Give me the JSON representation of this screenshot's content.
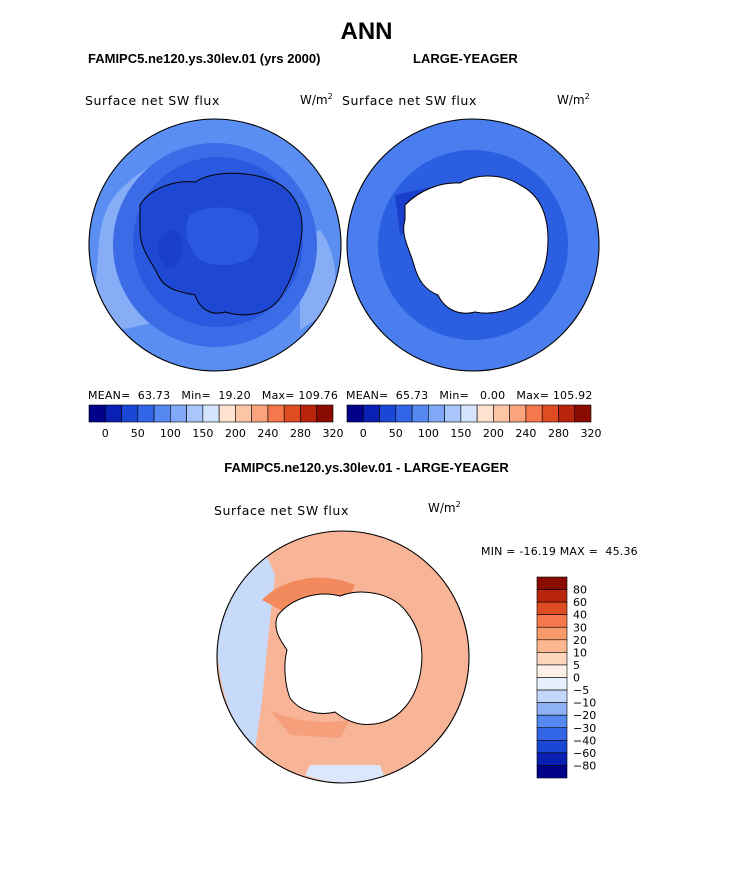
{
  "header": {
    "title": "ANN",
    "model_a": "FAMIPC5.ne120.ys.30lev.01 (yrs 2000)",
    "model_b": "LARGE-YEAGER",
    "diff_title": "FAMIPC5.ne120.ys.30lev.01 - LARGE-YEAGER"
  },
  "panels": {
    "a": {
      "variable": "Surface net SW flux",
      "units_base": "W/m",
      "units_exp": "2",
      "stats": "MEAN=  63.73   Min=  19.20   Max= 109.76"
    },
    "b": {
      "variable": "Surface net SW flux",
      "units_base": "W/m",
      "units_exp": "2",
      "stats": "MEAN=  65.73   Min=   0.00   Max= 105.92"
    },
    "diff": {
      "variable": "Surface net SW flux",
      "units_base": "W/m",
      "units_exp": "2",
      "stats": "MIN = -16.19 MAX =  45.36"
    }
  },
  "chart_data": [
    {
      "type": "heatmap",
      "projection": "south polar stereographic",
      "title": "Surface net SW flux",
      "subtitle": "FAMIPC5.ne120.ys.30lev.01 (yrs 2000)",
      "units": "W/m2",
      "mean": 63.73,
      "min": 19.2,
      "max": 109.76,
      "colorbar": {
        "orientation": "horizontal",
        "levels": [
          0,
          25,
          50,
          75,
          100,
          125,
          150,
          175,
          200,
          220,
          240,
          260,
          280,
          300,
          320
        ],
        "tick_labels": [
          "0",
          "50",
          "100",
          "150",
          "200",
          "240",
          "280",
          "320"
        ],
        "colors": [
          "#00008a",
          "#0a1fb4",
          "#1a47d6",
          "#3366e6",
          "#5588f0",
          "#80a8f6",
          "#a9c6fa",
          "#d4e4fd",
          "#fde2cf",
          "#fbc5a6",
          "#f9a47c",
          "#f4784b",
          "#e04c22",
          "#b8240c",
          "#8a0b00"
        ]
      }
    },
    {
      "type": "heatmap",
      "projection": "south polar stereographic",
      "title": "Surface net SW flux",
      "subtitle": "LARGE-YEAGER",
      "units": "W/m2",
      "mean": 65.73,
      "min": 0.0,
      "max": 105.92,
      "colorbar": {
        "orientation": "horizontal",
        "levels": [
          0,
          25,
          50,
          75,
          100,
          125,
          150,
          175,
          200,
          220,
          240,
          260,
          280,
          300,
          320
        ],
        "tick_labels": [
          "0",
          "50",
          "100",
          "150",
          "200",
          "240",
          "280",
          "320"
        ],
        "colors": [
          "#00008a",
          "#0a1fb4",
          "#1a47d6",
          "#3366e6",
          "#5588f0",
          "#80a8f6",
          "#a9c6fa",
          "#d4e4fd",
          "#fde2cf",
          "#fbc5a6",
          "#f9a47c",
          "#f4784b",
          "#e04c22",
          "#b8240c",
          "#8a0b00"
        ]
      }
    },
    {
      "type": "heatmap",
      "projection": "south polar stereographic",
      "title": "Surface net SW flux",
      "subtitle": "FAMIPC5.ne120.ys.30lev.01 - LARGE-YEAGER",
      "units": "W/m2",
      "min": -16.19,
      "max": 45.36,
      "colorbar": {
        "orientation": "vertical",
        "tick_labels": [
          "80",
          "60",
          "40",
          "30",
          "20",
          "10",
          "5",
          "0",
          "-5",
          "-10",
          "-20",
          "-30",
          "-40",
          "-60",
          "-80"
        ],
        "colors": [
          "#8a0b00",
          "#b8240c",
          "#e04c22",
          "#f4784b",
          "#f99a6b",
          "#fbb890",
          "#fdd6bc",
          "#fdf0e8",
          "#e8f0fd",
          "#c2d8fb",
          "#8fb2f6",
          "#5588f0",
          "#3366e6",
          "#1a47d6",
          "#0a1fb4",
          "#00008a"
        ]
      }
    }
  ]
}
